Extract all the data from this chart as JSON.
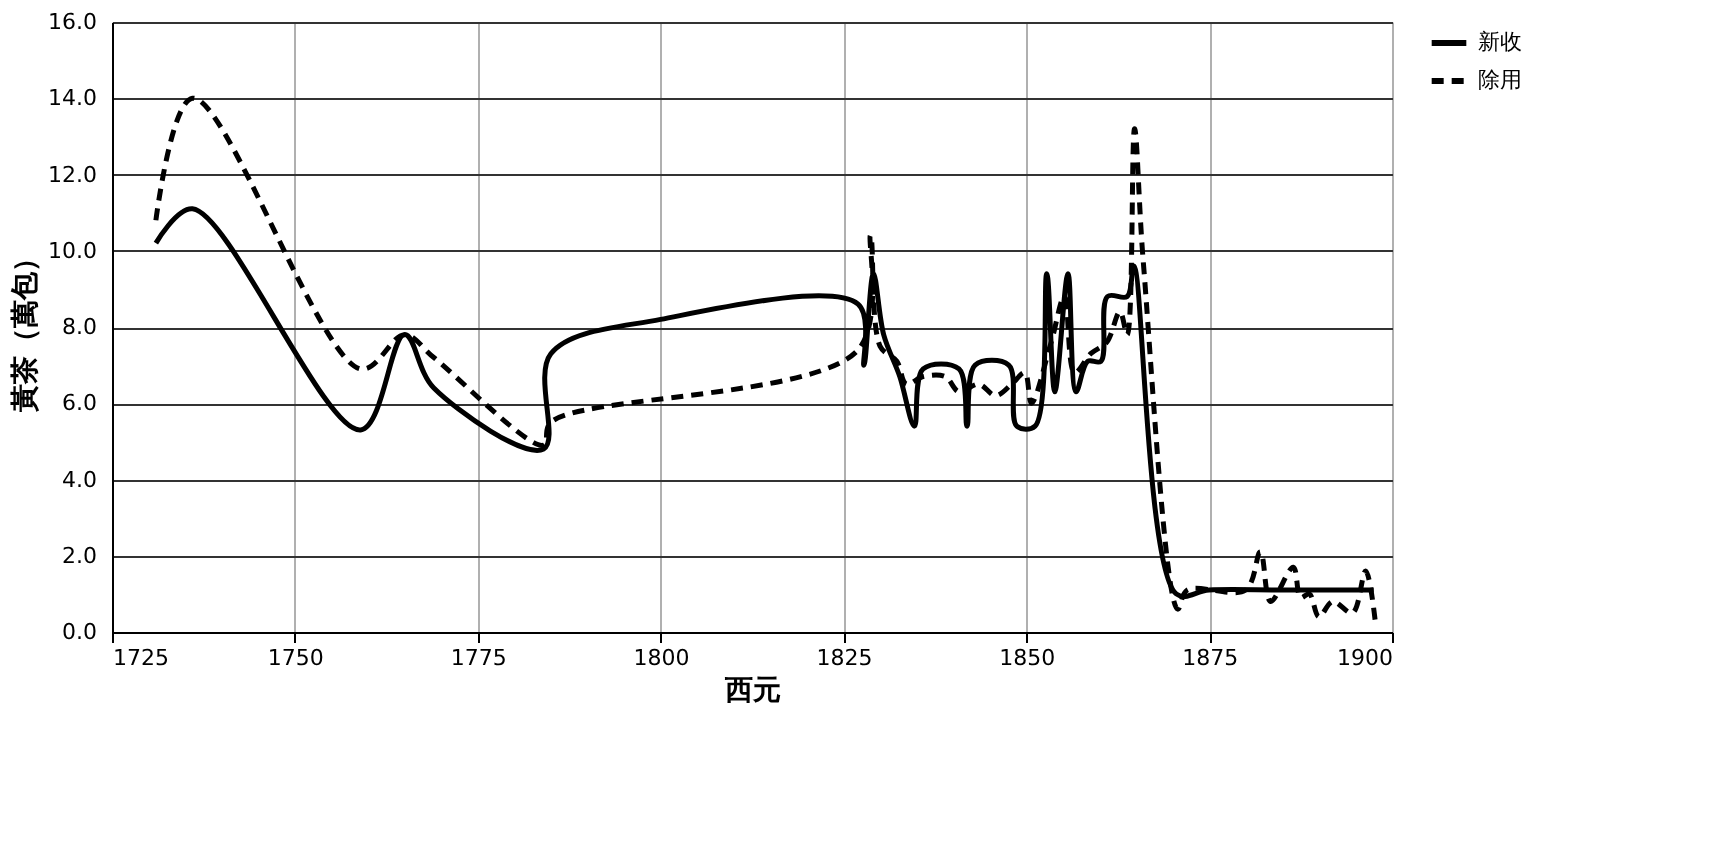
{
  "chart_data": {
    "type": "line",
    "xlabel": "西元",
    "ylabel": "黃茶（萬包）",
    "xlim": [
      1725,
      1900
    ],
    "xticks": [
      1725,
      1750,
      1775,
      1800,
      1825,
      1850,
      1875,
      1900
    ],
    "ylim": [
      0,
      16
    ],
    "yticks": [
      {
        "value": 0,
        "label": "0.0"
      },
      {
        "value": 2,
        "label": "2.0"
      },
      {
        "value": 4,
        "label": "4.0"
      },
      {
        "value": 6,
        "label": "6.0"
      },
      {
        "value": 8,
        "label": "8.0"
      },
      {
        "value": 10,
        "label": "10.0"
      },
      {
        "value": 12,
        "label": "12.0"
      },
      {
        "value": 14,
        "label": "14.0"
      },
      {
        "value": 16,
        "label": "16.0"
      }
    ],
    "grid": true,
    "legend": "right",
    "marker": "none",
    "series": [
      {
        "name": "新收",
        "color": "#000000",
        "line_style": "solid",
        "x": [
          1731,
          1736,
          1759,
          1765,
          1769,
          1784,
          1785,
          1800,
          1827,
          1827.8,
          1829.1,
          1830.5,
          1832.7,
          1834.7,
          1835.9,
          1840.8,
          1841.9,
          1843,
          1847.6,
          1848.7,
          1851.2,
          1852.8,
          1853.9,
          1855.7,
          1856.8,
          1858.4,
          1860.2,
          1861.1,
          1863.8,
          1864.7,
          1870.5,
          1875,
          1885,
          1897.5
        ],
        "values": [
          10.2,
          11.1,
          5.3,
          7.8,
          6.4,
          4.8,
          7.3,
          8.2,
          8.6,
          7.0,
          9.4,
          7.8,
          6.7,
          5.4,
          6.9,
          6.9,
          5.4,
          7.0,
          7.0,
          5.4,
          5.4,
          9.4,
          6.3,
          9.4,
          6.3,
          7.1,
          7.1,
          8.8,
          8.8,
          9.6,
          1.0,
          1.1,
          1.1,
          1.1
        ]
      },
      {
        "name": "除用",
        "color": "#000000",
        "line_style": "dashed",
        "x": [
          1731,
          1736,
          1759,
          1765,
          1769,
          1784,
          1785,
          1827,
          1828.7,
          1830,
          1832.3,
          1833.6,
          1835.9,
          1838.9,
          1840.8,
          1843.5,
          1845.8,
          1848,
          1849.8,
          1850.7,
          1853.4,
          1855.2,
          1856.6,
          1858.8,
          1861,
          1862.8,
          1863.8,
          1864.8,
          1866,
          1870.7,
          1872,
          1880,
          1882,
          1883.4,
          1886.5,
          1887.5,
          1888.7,
          1890,
          1891.9,
          1894.6,
          1896.4,
          1897.7
        ],
        "values": [
          10.8,
          14.0,
          6.9,
          7.8,
          7.2,
          4.9,
          5.5,
          7.4,
          10.4,
          7.5,
          7.1,
          6.5,
          6.7,
          6.7,
          6.3,
          6.5,
          6.2,
          6.5,
          6.8,
          6.0,
          7.6,
          8.8,
          6.8,
          7.3,
          7.6,
          8.4,
          7.8,
          13.2,
          9.7,
          0.6,
          1.1,
          1.1,
          2.1,
          0.8,
          1.7,
          0.9,
          1.0,
          0.4,
          0.8,
          0.5,
          1.6,
          0.3
        ]
      }
    ]
  }
}
